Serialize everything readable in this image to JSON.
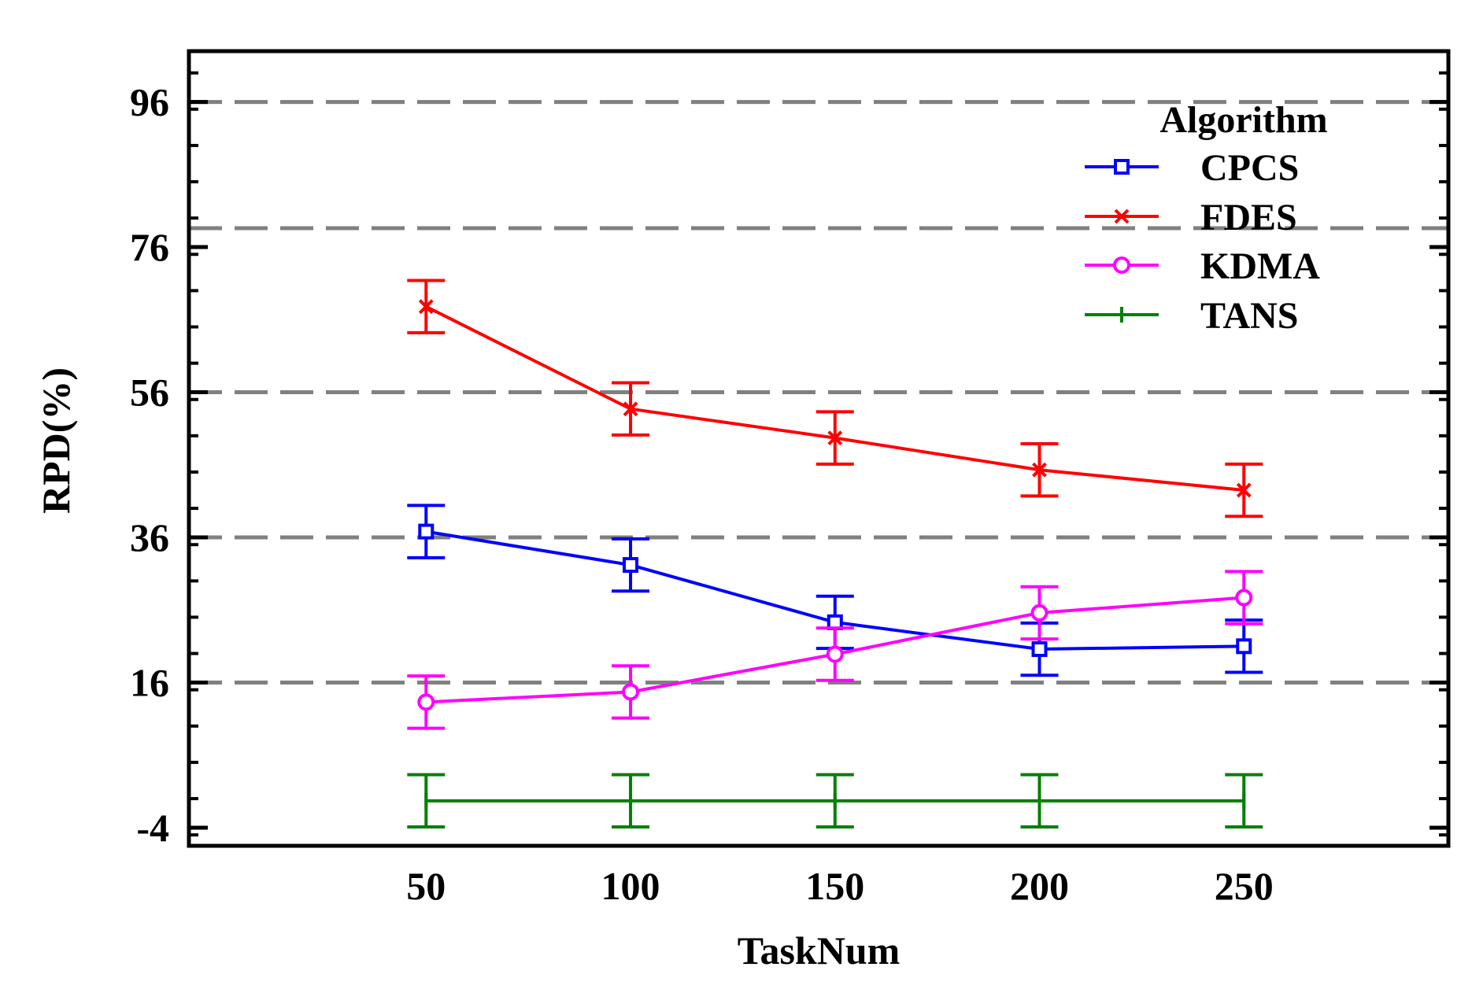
{
  "chart_data": {
    "type": "line",
    "title": "",
    "xlabel": "TaskNum",
    "ylabel": "RPD(%)",
    "x": [
      50,
      100,
      150,
      200,
      250
    ],
    "x_tick_labels": [
      "50",
      "100",
      "150",
      "200",
      "250"
    ],
    "xlim": [
      -8,
      300
    ],
    "y_ticks": [
      96,
      76,
      56,
      36,
      16,
      -4
    ],
    "y_tick_labels": [
      "96",
      "76",
      "56",
      "36",
      "16",
      "-4"
    ],
    "ylim": [
      -6.5,
      103
    ],
    "dashed_gridlines_y": [
      96,
      78.6,
      56,
      36,
      16
    ],
    "legend": {
      "title": "Algorithm",
      "position": "top-right"
    },
    "series": [
      {
        "name": "CPCS",
        "color": "#0000ff",
        "marker": "square",
        "values": [
          36.8,
          32.2,
          24.3,
          20.6,
          21.0
        ],
        "err_low": [
          33.2,
          28.6,
          20.7,
          17.0,
          17.4
        ],
        "err_high": [
          40.4,
          35.8,
          27.9,
          24.2,
          24.6
        ]
      },
      {
        "name": "FDES",
        "color": "#ff0000",
        "marker": "x",
        "values": [
          67.8,
          53.7,
          49.7,
          45.3,
          42.5
        ],
        "err_low": [
          64.2,
          50.1,
          46.1,
          41.7,
          38.9
        ],
        "err_high": [
          71.4,
          57.3,
          53.3,
          48.9,
          46.1
        ]
      },
      {
        "name": "KDMA",
        "color": "#ff00ff",
        "marker": "circle",
        "values": [
          13.3,
          14.7,
          19.9,
          25.6,
          27.7
        ],
        "err_low": [
          9.7,
          11.1,
          16.3,
          22.0,
          24.1
        ],
        "err_high": [
          16.9,
          18.3,
          23.5,
          29.2,
          31.3
        ]
      },
      {
        "name": "TANS",
        "color": "#008000",
        "marker": "plus",
        "values": -0.3,
        "err_low": -3.9,
        "err_high": 3.3
      }
    ]
  }
}
